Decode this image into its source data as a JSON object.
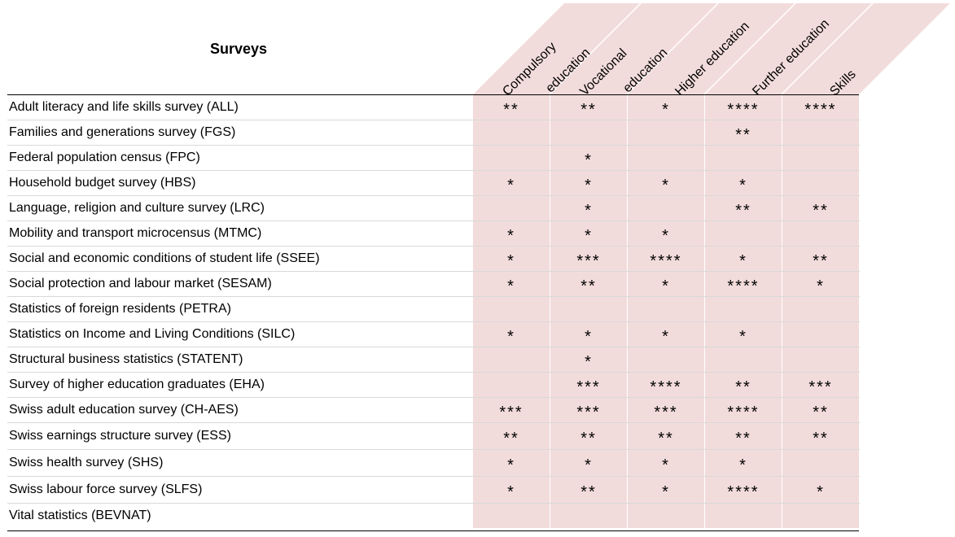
{
  "header": {
    "title": "Surveys",
    "columns": [
      {
        "lines": [
          "Compulsory",
          "education"
        ]
      },
      {
        "lines": [
          "Vocational",
          "education"
        ]
      },
      {
        "lines": [
          "Higher education"
        ]
      },
      {
        "lines": [
          "Further education"
        ]
      },
      {
        "lines": [
          "Skills"
        ]
      }
    ]
  },
  "colors": {
    "column_fill": "#f2dcdb",
    "row_divider": "#d9d9d9",
    "rule": "#000000"
  },
  "rows": [
    {
      "name": "Adult literacy and life skills survey (ALL)",
      "marks": [
        "**",
        "**",
        "*",
        "****",
        "****"
      ]
    },
    {
      "name": "Families and generations survey (FGS)",
      "marks": [
        "",
        "",
        "",
        "**",
        ""
      ]
    },
    {
      "name": "Federal population census (FPC)",
      "marks": [
        "",
        "*",
        "",
        "",
        ""
      ]
    },
    {
      "name": "Household budget survey (HBS)",
      "marks": [
        "*",
        "*",
        "*",
        "*",
        ""
      ]
    },
    {
      "name": "Language, religion and culture survey (LRC)",
      "marks": [
        "",
        "*",
        "",
        "**",
        "**"
      ]
    },
    {
      "name": "Mobility and transport microcensus (MTMC)",
      "marks": [
        "*",
        "*",
        "*",
        "",
        ""
      ]
    },
    {
      "name": "Social and economic conditions of student life (SSEE)",
      "marks": [
        "*",
        "***",
        "****",
        "*",
        "**"
      ]
    },
    {
      "name": "Social protection and labour market (SESAM)",
      "marks": [
        "*",
        "**",
        "*",
        "****",
        "*"
      ]
    },
    {
      "name": "Statistics of foreign residents (PETRA)",
      "marks": [
        "",
        "",
        "",
        "",
        ""
      ]
    },
    {
      "name": "Statistics on Income and Living Conditions (SILC)",
      "marks": [
        "*",
        "*",
        "*",
        "*",
        ""
      ]
    },
    {
      "name": "Structural business statistics (STATENT)",
      "marks": [
        "",
        "*",
        "",
        "",
        ""
      ]
    },
    {
      "name": "Survey of higher education graduates (EHA)",
      "marks": [
        "",
        "***",
        "****",
        "**",
        "***"
      ]
    },
    {
      "name": "Swiss adult education survey (CH-AES)",
      "marks": [
        "***",
        "***",
        "***",
        "****",
        "**"
      ]
    },
    {
      "name": "Swiss earnings structure survey (ESS)",
      "marks": [
        "**",
        "**",
        "**",
        "**",
        "**"
      ]
    },
    {
      "name": "Swiss health survey (SHS)",
      "marks": [
        "*",
        "*",
        "*",
        "*",
        ""
      ]
    },
    {
      "name": "Swiss labour force survey (SLFS)",
      "marks": [
        "*",
        "**",
        "*",
        "****",
        "*"
      ]
    },
    {
      "name": "Vital statistics (BEVNAT)",
      "marks": [
        "",
        "",
        "",
        "",
        ""
      ]
    }
  ]
}
